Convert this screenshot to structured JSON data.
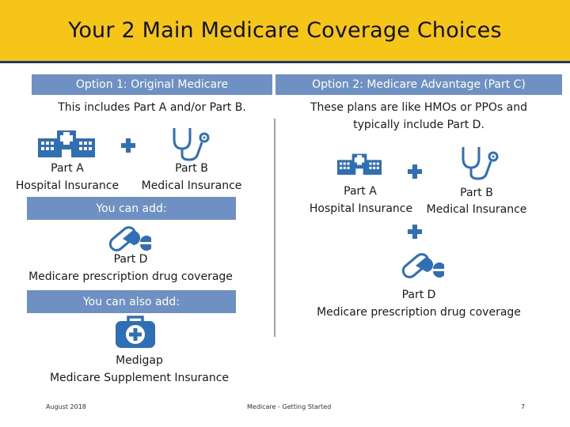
{
  "title": "Your 2 Main Medicare Coverage Choices",
  "colors": {
    "title_bar": "#f5c518",
    "header_blue": "#6f90c2",
    "icon_blue": "#2e6fb5",
    "rule": "#1b3f73"
  },
  "left": {
    "header": "Option 1: Original Medicare",
    "intro": "This includes Part A and/or Part B.",
    "part_a_title": "Part A",
    "part_a_desc": "Hospital Insurance",
    "part_b_title": "Part B",
    "part_b_desc": "Medical Insurance",
    "you_can_add": "You can add:",
    "part_d_title": "Part D",
    "part_d_desc": "Medicare prescription drug coverage",
    "you_can_also_add": "You can also add:",
    "medigap_title": "Medigap",
    "medigap_desc": "Medicare Supplement Insurance"
  },
  "right": {
    "header_main": "Option 2: Medicare Advantage",
    "header_sub": "(Part C)",
    "intro_line1": "These plans are like HMOs or PPOs and",
    "intro_line2": "typically include Part D.",
    "part_a_title": "Part A",
    "part_a_desc": "Hospital Insurance",
    "part_b_title": "Part B",
    "part_b_desc": "Medical Insurance",
    "part_d_title": "Part D",
    "part_d_desc": "Medicare prescription drug coverage"
  },
  "icons": [
    "hospital-icon",
    "plus-icon",
    "stethoscope-icon",
    "pills-icon",
    "first-aid-kit-icon"
  ],
  "footer": {
    "date": "August 2018",
    "center": "Medicare - Getting Started",
    "page": "7"
  }
}
